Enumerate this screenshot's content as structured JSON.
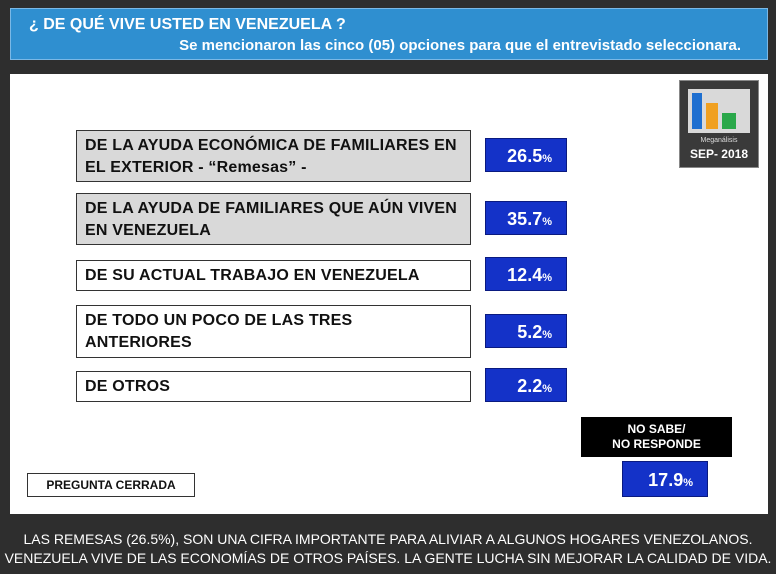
{
  "header": {
    "title": "¿ DE QUÉ VIVE USTED EN VENEZUELA ?",
    "subtitle": "Se mencionaron las cinco (05) opciones para que el entrevistado seleccionara."
  },
  "logo": {
    "brand": "Meganálisis",
    "date": "SEP- 2018"
  },
  "chart_data": {
    "type": "table",
    "categories": [
      "DE LA AYUDA ECONÓMICA DE FAMILIARES EN EL EXTERIOR - “Remesas” -",
      "DE LA AYUDA DE FAMILIARES QUE AÚN VIVEN EN VENEZUELA",
      "DE SU ACTUAL TRABAJO EN VENEZUELA",
      "DE TODO UN POCO DE LAS TRES ANTERIORES",
      "DE OTROS",
      "NO SABE/ NO RESPONDE"
    ],
    "values": [
      26.5,
      35.7,
      12.4,
      5.2,
      2.2,
      17.9
    ],
    "unit": "%",
    "highlight_color": "#1432c8",
    "options": [
      {
        "label": "DE LA AYUDA ECONÓMICA DE FAMILIARES EN EL EXTERIOR  - “Remesas” -",
        "value": "26.5",
        "unit": "%"
      },
      {
        "label": "DE LA AYUDA DE FAMILIARES QUE AÚN VIVEN EN VENEZUELA",
        "value": "35.7",
        "unit": "%"
      },
      {
        "label": "DE SU ACTUAL TRABAJO EN VENEZUELA",
        "value": "12.4",
        "unit": "%"
      },
      {
        "label": "DE TODO UN POCO DE LAS TRES ANTERIORES",
        "value": "5.2",
        "unit": "%"
      },
      {
        "label": "DE OTROS",
        "value": "2.2",
        "unit": "%"
      }
    ],
    "no_response": {
      "label_line1": "NO SABE/",
      "label_line2": "NO RESPONDE",
      "value": "17.9",
      "unit": "%"
    }
  },
  "tag": "PREGUNTA CERRADA",
  "footer": {
    "line1": "LAS REMESAS (26.5%), SON UNA CIFRA IMPORTANTE PARA ALIVIAR A ALGUNOS HOGARES VENEZOLANOS.",
    "line2": "VENEZUELA VIVE DE LAS ECONOMÍAS DE OTROS PAÍSES. LA GENTE LUCHA SIN MEJORAR LA CALIDAD DE VIDA."
  }
}
